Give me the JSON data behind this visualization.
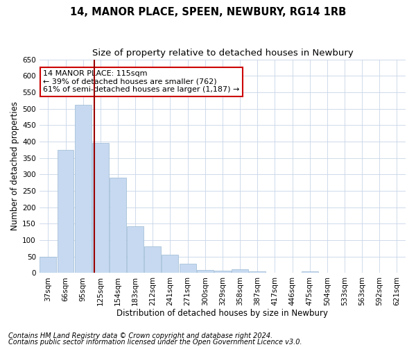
{
  "title1": "14, MANOR PLACE, SPEEN, NEWBURY, RG14 1RB",
  "title2": "Size of property relative to detached houses in Newbury",
  "xlabel": "Distribution of detached houses by size in Newbury",
  "ylabel": "Number of detached properties",
  "categories": [
    "37sqm",
    "66sqm",
    "95sqm",
    "125sqm",
    "154sqm",
    "183sqm",
    "212sqm",
    "241sqm",
    "271sqm",
    "300sqm",
    "329sqm",
    "358sqm",
    "387sqm",
    "417sqm",
    "446sqm",
    "475sqm",
    "504sqm",
    "533sqm",
    "563sqm",
    "592sqm",
    "621sqm"
  ],
  "values": [
    50,
    375,
    512,
    395,
    290,
    143,
    80,
    55,
    28,
    10,
    7,
    11,
    4,
    1,
    1,
    4,
    1,
    1,
    1,
    1,
    1
  ],
  "bar_color": "#c6d9f0",
  "bar_edge_color": "#9bbad4",
  "marker_line_color": "#990000",
  "annotation_line1": "14 MANOR PLACE: 115sqm",
  "annotation_line2": "← 39% of detached houses are smaller (762)",
  "annotation_line3": "61% of semi-detached houses are larger (1,187) →",
  "annotation_box_color": "#ffffff",
  "annotation_box_edge_color": "#cc0000",
  "ylim": [
    0,
    650
  ],
  "yticks": [
    0,
    50,
    100,
    150,
    200,
    250,
    300,
    350,
    400,
    450,
    500,
    550,
    600,
    650
  ],
  "footer1": "Contains HM Land Registry data © Crown copyright and database right 2024.",
  "footer2": "Contains public sector information licensed under the Open Government Licence v3.0.",
  "bg_color": "#ffffff",
  "grid_color": "#c8d4e8",
  "title_fontsize": 10.5,
  "subtitle_fontsize": 9.5,
  "axis_label_fontsize": 8.5,
  "tick_fontsize": 7.5,
  "annotation_fontsize": 8,
  "footer_fontsize": 7
}
